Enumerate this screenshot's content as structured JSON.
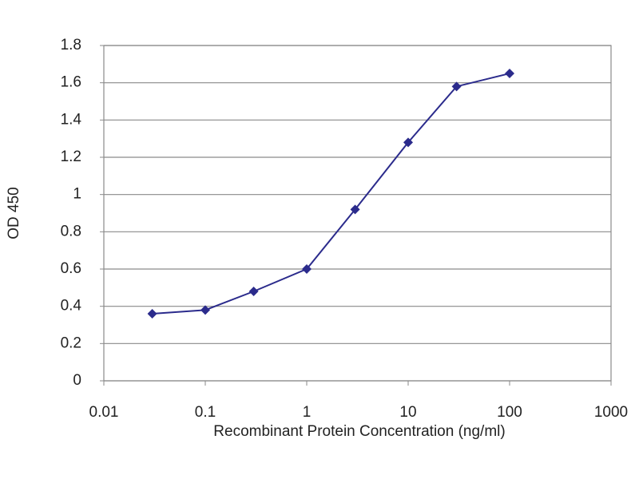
{
  "chart_data": {
    "type": "line",
    "x_label": "Recombinant Protein Concentration (ng/ml)",
    "y_label": "OD 450",
    "x": [
      0.03,
      0.1,
      0.3,
      1,
      3,
      10,
      30,
      100
    ],
    "values": [
      0.36,
      0.38,
      0.48,
      0.6,
      0.92,
      1.28,
      1.58,
      1.65
    ],
    "color": "#2b2b8c",
    "xlim": [
      0.01,
      1000
    ],
    "xticks": [
      0.01,
      0.1,
      1,
      10,
      100,
      1000
    ],
    "log_x": true,
    "ylim": [
      0,
      1.8
    ],
    "yticks": [
      0,
      0.2,
      0.4,
      0.6,
      0.8,
      1,
      1.2,
      1.4,
      1.6,
      1.8
    ],
    "grid": true
  }
}
